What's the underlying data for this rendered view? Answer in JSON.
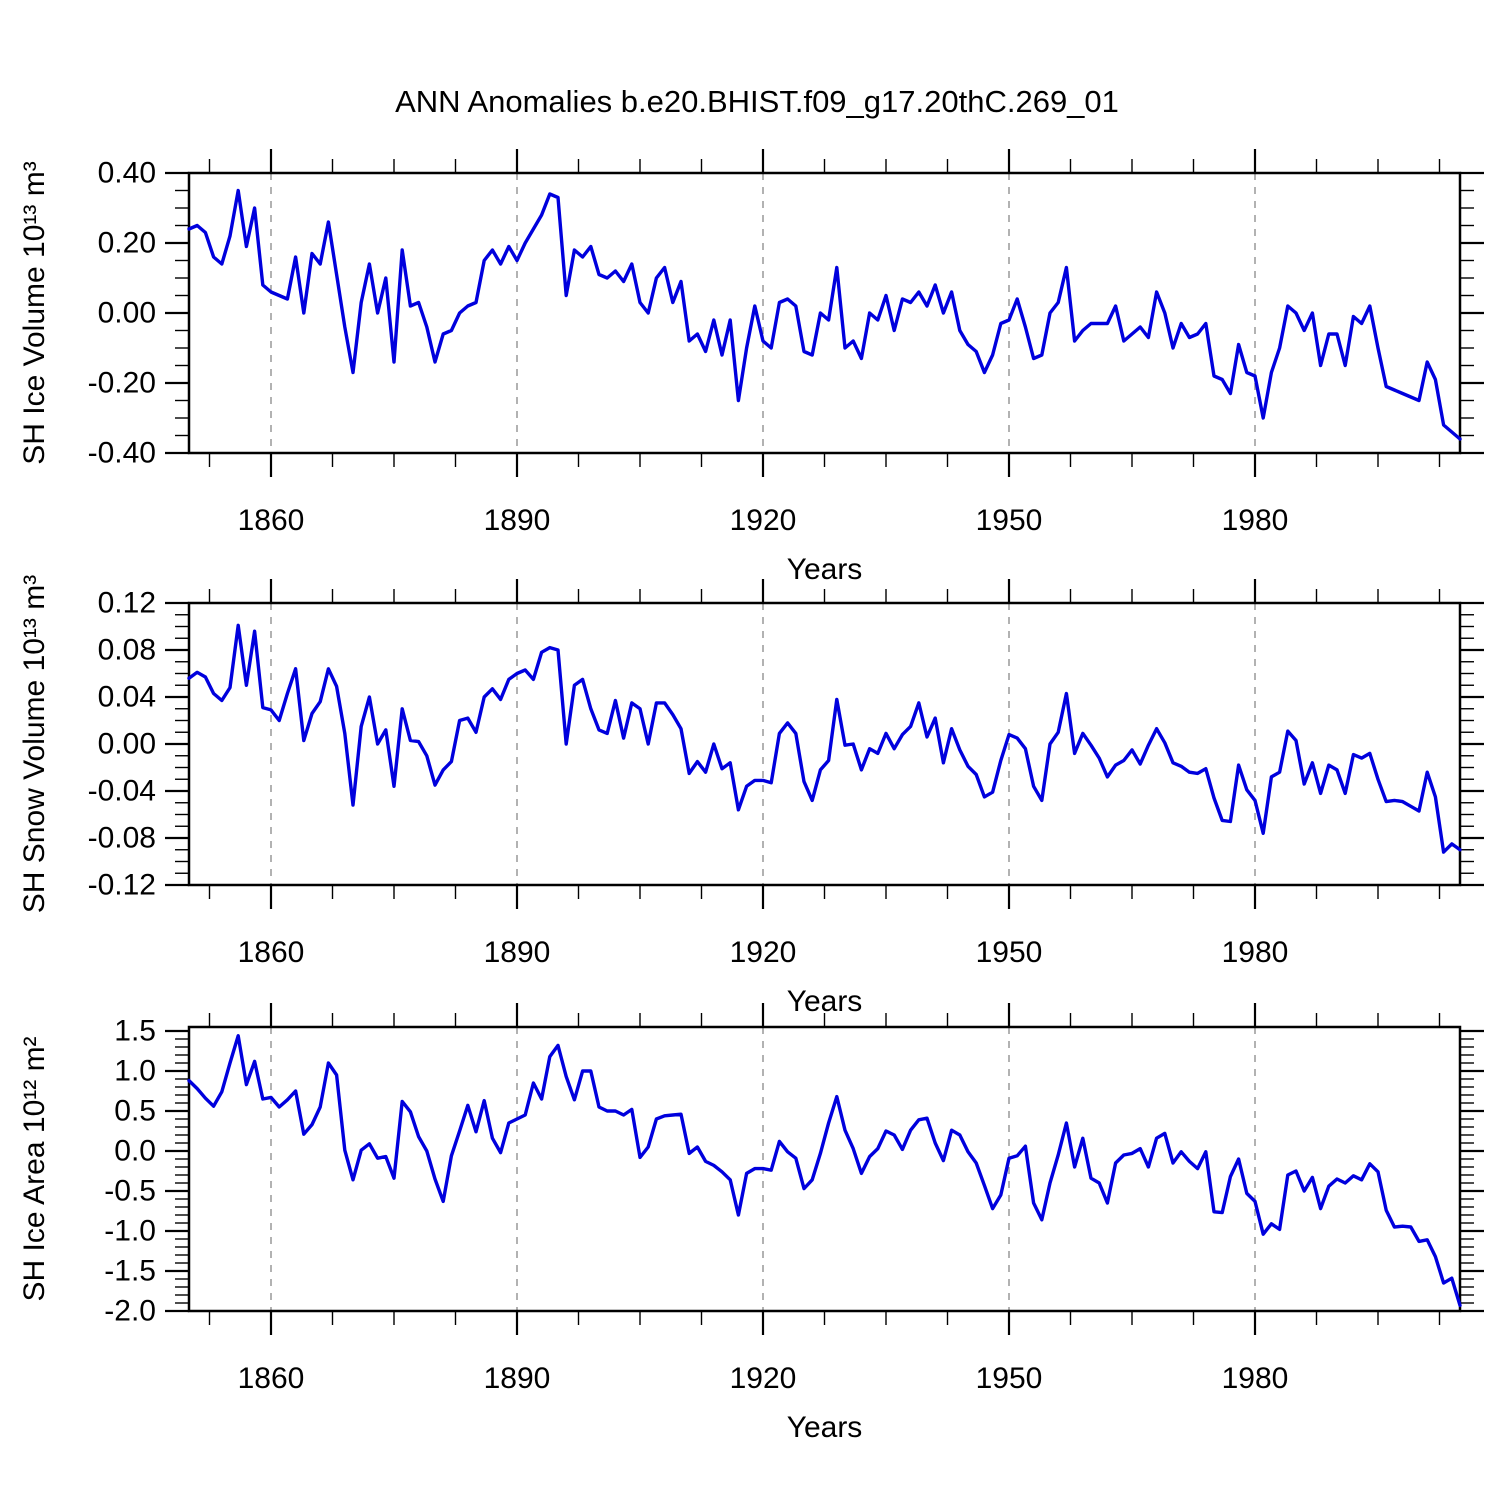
{
  "title": "ANN Anomalies b.e20.BHIST.f09_g17.20thC.269_01",
  "style": {
    "line_color": "#0000dd",
    "grid_color": "#999999",
    "axis_color": "#000000",
    "background": "#ffffff"
  },
  "chart_data": [
    {
      "id": "sh-ice-volume",
      "type": "line",
      "ylabel": "SH Ice Volume 10¹³ m³",
      "xlabel": "Years",
      "xlim": [
        1850,
        2005
      ],
      "x_start": 1850,
      "x_step": 1,
      "ylim": [
        -0.4,
        0.4
      ],
      "ytick_values": [
        0.4,
        0.2,
        0.0,
        -0.2,
        -0.4
      ],
      "ytick_labels": [
        "0.40",
        "0.20",
        "0.00",
        "-0.20",
        "-0.40"
      ],
      "yminor_step": 0.05,
      "xtick_values": [
        1860,
        1890,
        1920,
        1950,
        1980
      ],
      "xtick_labels": [
        "1860",
        "1890",
        "1920",
        "1950",
        "1980"
      ],
      "xminor_step": 7.5,
      "grid": "dashed-vertical-at-major-xticks",
      "values": [
        0.24,
        0.25,
        0.23,
        0.16,
        0.14,
        0.22,
        0.35,
        0.19,
        0.3,
        0.08,
        0.06,
        0.05,
        0.04,
        0.16,
        0.0,
        0.17,
        0.14,
        0.26,
        0.11,
        -0.04,
        -0.17,
        0.03,
        0.14,
        0.0,
        0.1,
        -0.14,
        0.18,
        0.02,
        0.03,
        -0.04,
        -0.14,
        -0.06,
        -0.05,
        0.0,
        0.02,
        0.03,
        0.15,
        0.18,
        0.14,
        0.19,
        0.15,
        0.2,
        0.24,
        0.28,
        0.34,
        0.33,
        0.05,
        0.18,
        0.16,
        0.19,
        0.11,
        0.1,
        0.12,
        0.09,
        0.14,
        0.03,
        0.0,
        0.1,
        0.13,
        0.03,
        0.09,
        -0.08,
        -0.06,
        -0.11,
        -0.02,
        -0.12,
        -0.02,
        -0.25,
        -0.1,
        0.02,
        -0.08,
        -0.1,
        0.03,
        0.04,
        0.02,
        -0.11,
        -0.12,
        0.0,
        -0.02,
        0.13,
        -0.1,
        -0.08,
        -0.13,
        0.0,
        -0.02,
        0.05,
        -0.05,
        0.04,
        0.03,
        0.06,
        0.02,
        0.08,
        0.0,
        0.06,
        -0.05,
        -0.09,
        -0.11,
        -0.17,
        -0.12,
        -0.03,
        -0.02,
        0.04,
        -0.04,
        -0.13,
        -0.12,
        0.0,
        0.03,
        0.13,
        -0.08,
        -0.05,
        -0.03,
        -0.03,
        -0.03,
        0.02,
        -0.08,
        -0.06,
        -0.04,
        -0.07,
        0.06,
        0.0,
        -0.1,
        -0.03,
        -0.07,
        -0.06,
        -0.03,
        -0.18,
        -0.19,
        -0.23,
        -0.09,
        -0.17,
        -0.18,
        -0.3,
        -0.17,
        -0.1,
        0.02,
        0.0,
        -0.05,
        0.0,
        -0.15,
        -0.06,
        -0.06,
        -0.15,
        -0.01,
        -0.03,
        0.02,
        -0.1,
        -0.21,
        -0.22,
        -0.23,
        -0.24,
        -0.25,
        -0.14,
        -0.19,
        -0.32,
        -0.34,
        -0.36
      ]
    },
    {
      "id": "sh-snow-volume",
      "type": "line",
      "ylabel": "SH Snow Volume 10¹³ m³",
      "xlabel": "Years",
      "xlim": [
        1850,
        2005
      ],
      "x_start": 1850,
      "x_step": 1,
      "ylim": [
        -0.12,
        0.12
      ],
      "ytick_values": [
        0.12,
        0.08,
        0.04,
        0.0,
        -0.04,
        -0.08,
        -0.12
      ],
      "ytick_labels": [
        "0.12",
        "0.08",
        "0.04",
        "0.00",
        "-0.04",
        "-0.08",
        "-0.12"
      ],
      "yminor_step": 0.01,
      "xtick_values": [
        1860,
        1890,
        1920,
        1950,
        1980
      ],
      "xtick_labels": [
        "1860",
        "1890",
        "1920",
        "1950",
        "1980"
      ],
      "xminor_step": 7.5,
      "grid": "dashed-vertical-at-major-xticks",
      "values": [
        0.056,
        0.061,
        0.057,
        0.043,
        0.037,
        0.048,
        0.101,
        0.05,
        0.096,
        0.031,
        0.029,
        0.02,
        0.043,
        0.064,
        0.003,
        0.026,
        0.036,
        0.064,
        0.049,
        0.009,
        -0.052,
        0.015,
        0.04,
        0.0,
        0.012,
        -0.036,
        0.03,
        0.003,
        0.002,
        -0.01,
        -0.035,
        -0.022,
        -0.015,
        0.02,
        0.022,
        0.01,
        0.04,
        0.047,
        0.038,
        0.055,
        0.06,
        0.063,
        0.055,
        0.078,
        0.082,
        0.08,
        0.0,
        0.05,
        0.055,
        0.03,
        0.012,
        0.009,
        0.037,
        0.005,
        0.035,
        0.03,
        0.0,
        0.035,
        0.035,
        0.025,
        0.013,
        -0.025,
        -0.015,
        -0.024,
        0.0,
        -0.021,
        -0.016,
        -0.056,
        -0.036,
        -0.031,
        -0.031,
        -0.033,
        0.009,
        0.018,
        0.009,
        -0.032,
        -0.048,
        -0.022,
        -0.014,
        0.038,
        -0.001,
        0.0,
        -0.022,
        -0.004,
        -0.008,
        0.009,
        -0.004,
        0.008,
        0.015,
        0.035,
        0.006,
        0.022,
        -0.016,
        0.013,
        -0.005,
        -0.019,
        -0.026,
        -0.045,
        -0.041,
        -0.014,
        0.008,
        0.005,
        -0.004,
        -0.036,
        -0.048,
        0.0,
        0.01,
        0.043,
        -0.008,
        0.009,
        -0.001,
        -0.012,
        -0.028,
        -0.018,
        -0.014,
        -0.005,
        -0.017,
        -0.001,
        0.013,
        0.001,
        -0.016,
        -0.019,
        -0.024,
        -0.025,
        -0.021,
        -0.046,
        -0.065,
        -0.066,
        -0.018,
        -0.039,
        -0.048,
        -0.076,
        -0.028,
        -0.024,
        0.011,
        0.003,
        -0.034,
        -0.016,
        -0.042,
        -0.018,
        -0.022,
        -0.042,
        -0.009,
        -0.012,
        -0.008,
        -0.03,
        -0.049,
        -0.048,
        -0.049,
        -0.053,
        -0.057,
        -0.024,
        -0.045,
        -0.092,
        -0.085,
        -0.09
      ]
    },
    {
      "id": "sh-ice-area",
      "type": "line",
      "ylabel": "SH Ice Area 10¹² m²",
      "xlabel": "Years",
      "xlim": [
        1850,
        2005
      ],
      "x_start": 1850,
      "x_step": 1,
      "ylim": [
        -2.0,
        1.55
      ],
      "ytick_values": [
        1.5,
        1.0,
        0.5,
        0.0,
        -0.5,
        -1.0,
        -1.5,
        -2.0
      ],
      "ytick_labels": [
        "1.5",
        "1.0",
        "0.5",
        "0.0",
        "-0.5",
        "-1.0",
        "-1.5",
        "-2.0"
      ],
      "yminor_step": 0.1,
      "xtick_values": [
        1860,
        1890,
        1920,
        1950,
        1980
      ],
      "xtick_labels": [
        "1860",
        "1890",
        "1920",
        "1950",
        "1980"
      ],
      "xminor_step": 7.5,
      "grid": "dashed-vertical-at-major-xticks",
      "values": [
        0.88,
        0.78,
        0.66,
        0.56,
        0.74,
        1.1,
        1.44,
        0.83,
        1.12,
        0.65,
        0.67,
        0.55,
        0.64,
        0.75,
        0.21,
        0.33,
        0.55,
        1.1,
        0.95,
        0.01,
        -0.36,
        0.01,
        0.09,
        -0.09,
        -0.07,
        -0.34,
        0.62,
        0.49,
        0.18,
        0.0,
        -0.35,
        -0.63,
        -0.06,
        0.25,
        0.57,
        0.24,
        0.63,
        0.16,
        -0.02,
        0.35,
        0.4,
        0.45,
        0.85,
        0.65,
        1.18,
        1.32,
        0.93,
        0.64,
        1.0,
        1.0,
        0.55,
        0.5,
        0.5,
        0.45,
        0.52,
        -0.08,
        0.05,
        0.4,
        0.44,
        0.45,
        0.46,
        -0.03,
        0.05,
        -0.13,
        -0.18,
        -0.26,
        -0.36,
        -0.8,
        -0.28,
        -0.22,
        -0.22,
        -0.24,
        0.12,
        -0.01,
        -0.09,
        -0.47,
        -0.36,
        -0.03,
        0.35,
        0.68,
        0.26,
        0.03,
        -0.28,
        -0.07,
        0.03,
        0.25,
        0.2,
        0.02,
        0.26,
        0.39,
        0.41,
        0.1,
        -0.12,
        0.26,
        0.2,
        -0.01,
        -0.15,
        -0.43,
        -0.72,
        -0.55,
        -0.09,
        -0.06,
        0.06,
        -0.65,
        -0.86,
        -0.4,
        -0.05,
        0.35,
        -0.2,
        0.16,
        -0.34,
        -0.4,
        -0.65,
        -0.15,
        -0.05,
        -0.03,
        0.03,
        -0.2,
        0.16,
        0.22,
        -0.15,
        -0.01,
        -0.13,
        -0.22,
        -0.01,
        -0.76,
        -0.77,
        -0.32,
        -0.1,
        -0.53,
        -0.63,
        -1.04,
        -0.91,
        -0.98,
        -0.3,
        -0.25,
        -0.5,
        -0.33,
        -0.72,
        -0.44,
        -0.35,
        -0.4,
        -0.31,
        -0.36,
        -0.16,
        -0.26,
        -0.74,
        -0.95,
        -0.94,
        -0.95,
        -1.13,
        -1.11,
        -1.32,
        -1.65,
        -1.59,
        -1.93
      ]
    }
  ]
}
